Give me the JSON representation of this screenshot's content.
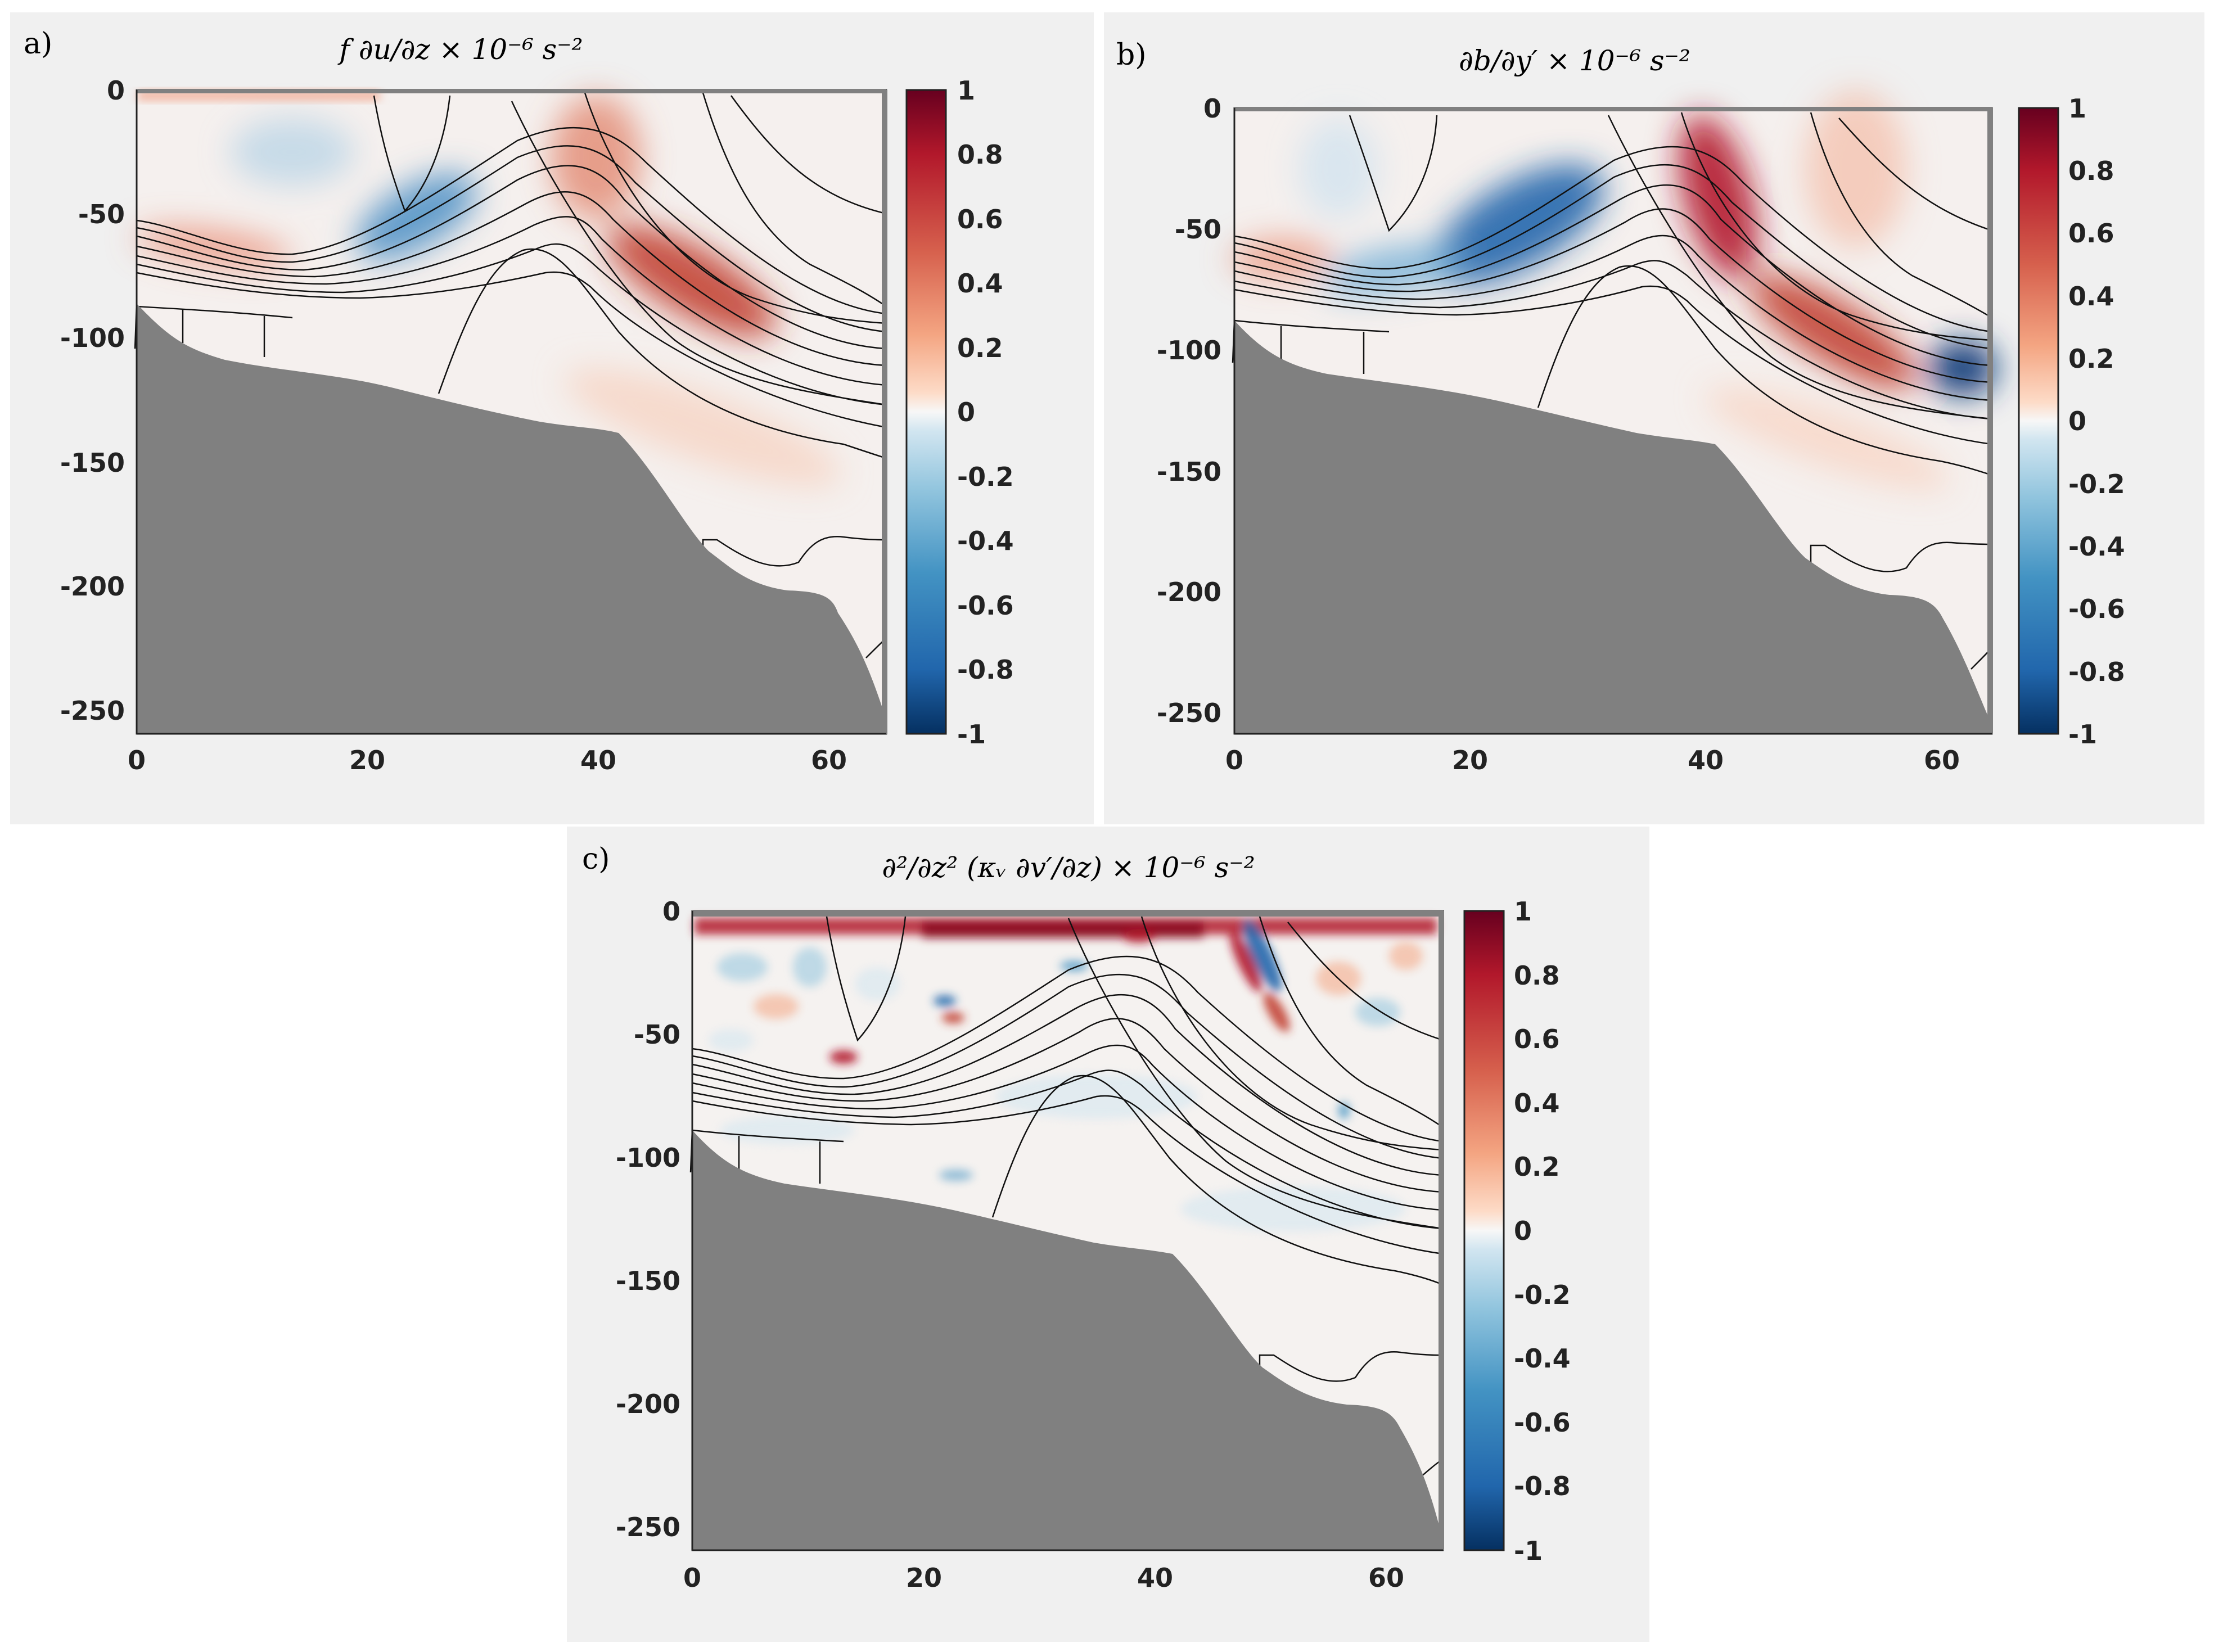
{
  "figure": {
    "panels": [
      {
        "id": "a",
        "label": "a)",
        "title": "f ∂u/∂z × 10⁻⁶ s⁻²"
      },
      {
        "id": "b",
        "label": "b)",
        "title": "∂b/∂y′ × 10⁻⁶ s⁻²"
      },
      {
        "id": "c",
        "label": "c)",
        "title": "∂²/∂z² (κᵥ ∂v′/∂z) × 10⁻⁶ s⁻²"
      }
    ]
  },
  "chart_data": [
    {
      "type": "heatmap",
      "panel": "a",
      "title": "f ∂u/∂z × 10⁻⁶ s⁻²",
      "xlim": [
        0,
        65
      ],
      "ylim": [
        -260,
        0
      ],
      "xticks": [
        0,
        20,
        40,
        60
      ],
      "yticks": [
        0,
        -50,
        -100,
        -150,
        -200,
        -250
      ],
      "colorbar": {
        "range": [
          -1,
          1
        ],
        "ticks": [
          1,
          0.8,
          0.6,
          0.4,
          0.2,
          0,
          -0.2,
          -0.4,
          -0.6,
          -0.8,
          -1
        ]
      },
      "features": [
        {
          "kind": "negative",
          "x": 24,
          "z": -48,
          "value": -0.55
        },
        {
          "kind": "positive",
          "x": 49,
          "z": -80,
          "value": 0.75
        },
        {
          "kind": "positive",
          "x": 42,
          "z": -45,
          "value": 0.45
        },
        {
          "kind": "positive",
          "x": 6,
          "z": -68,
          "value": 0.4
        },
        {
          "kind": "positive",
          "x": 8,
          "z": -2,
          "value": 0.35
        }
      ]
    },
    {
      "type": "heatmap",
      "panel": "b",
      "title": "∂b/∂y′ × 10⁻⁶ s⁻²",
      "xlim": [
        0,
        65
      ],
      "ylim": [
        -260,
        0
      ],
      "xticks": [
        0,
        20,
        40,
        60
      ],
      "yticks": [
        0,
        -50,
        -100,
        -150,
        -200,
        -250
      ],
      "colorbar": {
        "range": [
          -1,
          1
        ],
        "ticks": [
          1,
          0.8,
          0.6,
          0.4,
          0.2,
          0,
          -0.2,
          -0.4,
          -0.6,
          -0.8,
          -1
        ]
      },
      "features": [
        {
          "kind": "negative",
          "x": 27,
          "z": -48,
          "value": -0.85
        },
        {
          "kind": "negative",
          "x": 62,
          "z": -110,
          "value": -0.9
        },
        {
          "kind": "positive",
          "x": 41,
          "z": -45,
          "value": 0.9
        },
        {
          "kind": "positive",
          "x": 51,
          "z": -90,
          "value": 0.7
        },
        {
          "kind": "positive",
          "x": 5,
          "z": -70,
          "value": 0.35
        }
      ]
    },
    {
      "type": "heatmap",
      "panel": "c",
      "title": "∂²/∂z² (κᵥ ∂v′/∂z) × 10⁻⁶ s⁻²",
      "xlim": [
        0,
        65
      ],
      "ylim": [
        -260,
        0
      ],
      "xticks": [
        0,
        20,
        40,
        60
      ],
      "yticks": [
        0,
        -50,
        -100,
        -150,
        -200,
        -250
      ],
      "colorbar": {
        "range": [
          -1,
          1
        ],
        "ticks": [
          1,
          0.8,
          0.6,
          0.4,
          0.2,
          0,
          -0.2,
          -0.4,
          -0.6,
          -0.8,
          -1
        ]
      },
      "features": [
        {
          "kind": "positive",
          "x": 32,
          "z": -5,
          "value": 0.95
        },
        {
          "kind": "negative",
          "x": 50,
          "z": -25,
          "value": -0.9
        },
        {
          "kind": "positive",
          "x": 49,
          "z": -30,
          "value": 0.8
        },
        {
          "kind": "positive",
          "x": 13,
          "z": -58,
          "value": 0.7
        },
        {
          "kind": "negative",
          "x": 22,
          "z": -38,
          "value": -0.5
        }
      ]
    }
  ]
}
